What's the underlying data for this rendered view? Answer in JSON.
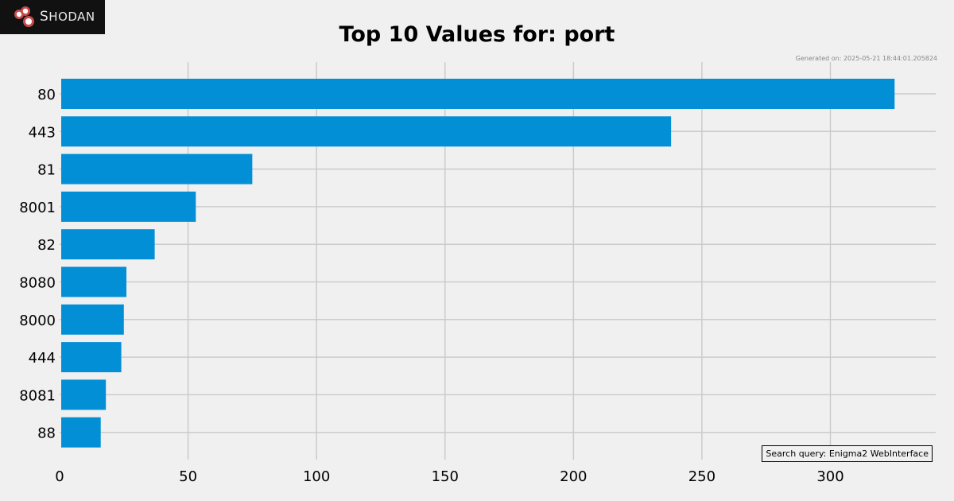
{
  "logo": {
    "text_first": "S",
    "text_rest": "HODAN"
  },
  "generated": "Generated on: 2025-05-21 18:44:01.205824",
  "query": "Search query: Enigma2 WebInterface",
  "colors": {
    "bar": "#038fd6",
    "grid": "#cbcbcb",
    "background": "#f0f0f0"
  },
  "chart_data": {
    "type": "bar",
    "orientation": "horizontal",
    "title": "Top 10 Values for: port",
    "categories": [
      "80",
      "443",
      "81",
      "8001",
      "82",
      "8080",
      "8000",
      "444",
      "8081",
      "88"
    ],
    "values": [
      325,
      238,
      75,
      53,
      37,
      26,
      25,
      24,
      18,
      16
    ],
    "xlim": [
      0,
      341
    ],
    "xticks": [
      0,
      50,
      100,
      150,
      200,
      250,
      300
    ],
    "grid": true,
    "xlabel": "",
    "ylabel": ""
  }
}
